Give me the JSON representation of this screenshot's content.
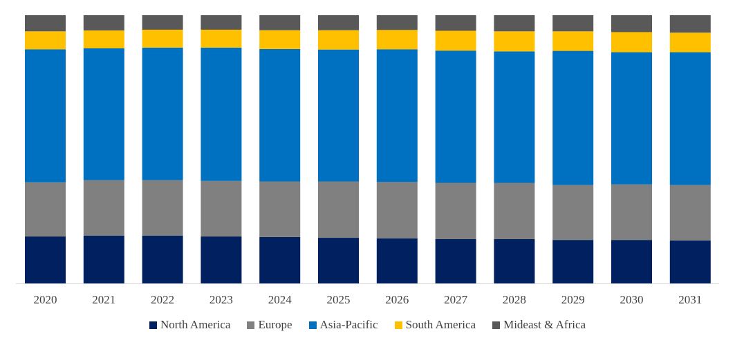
{
  "chart_data": {
    "type": "bar",
    "stacked": true,
    "percent_stacked": true,
    "title": "",
    "xlabel": "",
    "ylabel": "",
    "ylim": [
      0,
      100
    ],
    "grid": false,
    "legend_position": "bottom",
    "categories": [
      "2020",
      "2021",
      "2022",
      "2023",
      "2024",
      "2025",
      "2026",
      "2027",
      "2028",
      "2029",
      "2030",
      "2031"
    ],
    "series": [
      {
        "name": "North America",
        "color": "#002060",
        "values": [
          17.5,
          17.8,
          17.8,
          17.5,
          17.3,
          17.0,
          16.8,
          16.5,
          16.5,
          16.2,
          16.2,
          16.0
        ]
      },
      {
        "name": "Europe",
        "color": "#808080",
        "values": [
          20.2,
          20.7,
          20.7,
          20.7,
          20.7,
          21.0,
          21.0,
          21.0,
          21.0,
          20.5,
          20.7,
          20.7
        ]
      },
      {
        "name": "Asia-Pacific",
        "color": "#0070C0",
        "values": [
          49.6,
          49.2,
          49.4,
          49.7,
          49.4,
          49.2,
          49.5,
          49.3,
          49.0,
          50.0,
          49.3,
          49.5
        ]
      },
      {
        "name": "South America",
        "color": "#FFC000",
        "values": [
          6.7,
          6.6,
          6.7,
          6.7,
          7.0,
          7.2,
          7.2,
          7.4,
          7.5,
          7.3,
          7.5,
          7.3
        ]
      },
      {
        "name": "Mideast & Africa",
        "color": "#595959",
        "values": [
          6.0,
          5.7,
          5.4,
          5.4,
          5.6,
          5.6,
          5.5,
          5.8,
          6.0,
          6.0,
          6.3,
          6.5
        ]
      }
    ]
  }
}
